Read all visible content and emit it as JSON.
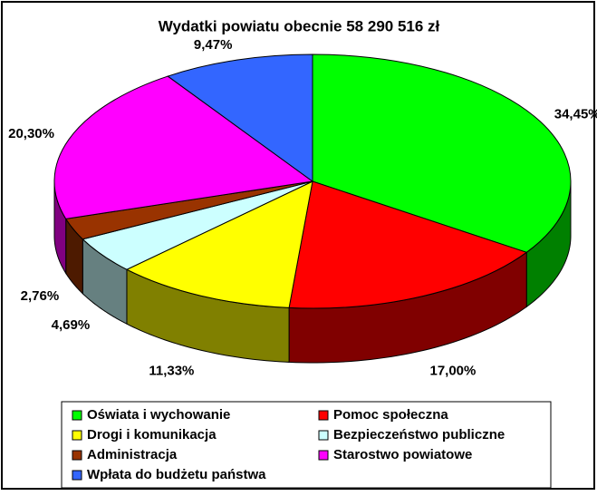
{
  "chart_data": {
    "type": "pie3d",
    "title": "Wydatki powiatu obecnie 58 290 516 zł",
    "categories": [
      "Oświata i wychowanie",
      "Pomoc społeczna",
      "Drogi i komunikacja",
      "Bezpieczeństwo publiczne",
      "Administracja",
      "Starostwo powiatowe",
      "Wpłata do budżetu państwa"
    ],
    "values": [
      34.45,
      17.0,
      11.33,
      4.69,
      2.76,
      20.3,
      9.47
    ],
    "value_labels": [
      "34,45%",
      "17,00%",
      "11,33%",
      "4,69%",
      "2,76%",
      "20,30%",
      "9,47%"
    ],
    "colors": [
      "#00ff00",
      "#ff0000",
      "#ffff00",
      "#ccffff",
      "#993300",
      "#ff00ff",
      "#3366ff"
    ],
    "legend": "bottom"
  }
}
